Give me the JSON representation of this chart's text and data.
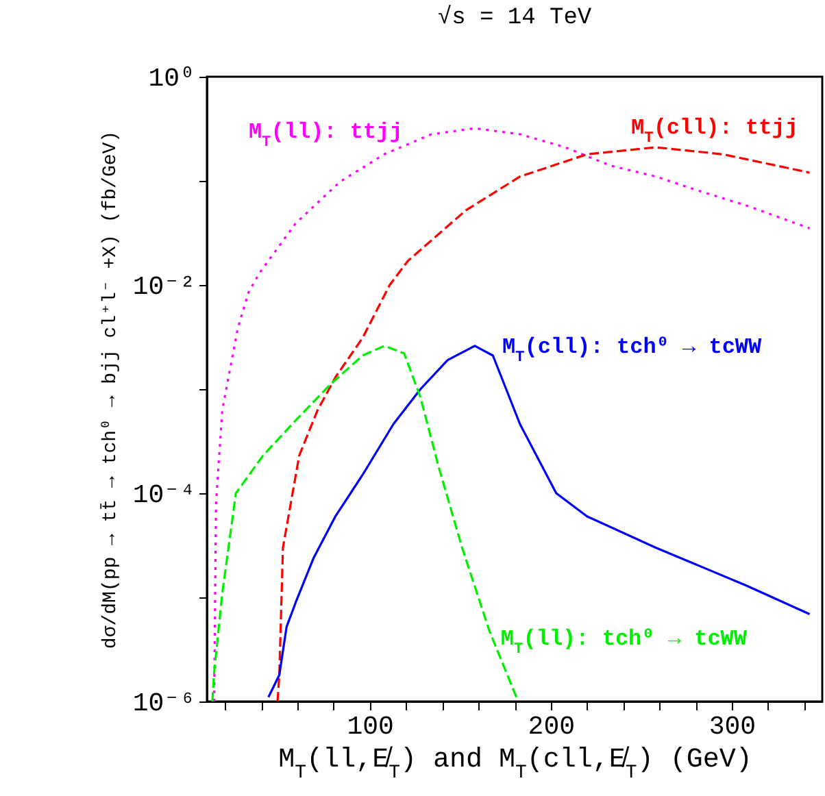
{
  "chart_data": {
    "type": "line",
    "title": "√s = 14 TeV",
    "xlabel": "M$_{T}$(ll,E̸$_{T}$) and M$_{T}$(cll,E̸$_{T}$) (GeV)",
    "ylabel": "dσ/dM(pp → tt̄ → tch⁰ → bjj cl⁺l⁻ +X) (fb/GeV)",
    "log": "y",
    "xlim": [
      10,
      350
    ],
    "ylim": [
      1e-06,
      1
    ],
    "xticks": [
      {
        "value": 20,
        "label": null
      },
      {
        "value": 40,
        "label": null
      },
      {
        "value": 60,
        "label": null
      },
      {
        "value": 80,
        "label": null
      },
      100,
      {
        "value": 120,
        "label": null
      },
      {
        "value": 140,
        "label": null
      },
      {
        "value": 160,
        "label": null
      },
      {
        "value": 180,
        "label": null
      },
      200,
      {
        "value": 220,
        "label": null
      },
      {
        "value": 240,
        "label": null
      },
      {
        "value": 260,
        "label": null
      },
      {
        "value": 280,
        "label": null
      },
      300,
      {
        "value": 320,
        "label": null
      },
      {
        "value": 340,
        "label": null
      }
    ],
    "yticks": [
      {
        "value": 1,
        "label": "10⁰"
      },
      {
        "value": 0.1,
        "label": null
      },
      {
        "value": 0.01,
        "label": "10⁻²"
      },
      {
        "value": 0.001,
        "label": null
      },
      {
        "value": 0.0001,
        "label": "10⁻⁴"
      },
      {
        "value": 1e-05,
        "label": null
      },
      {
        "value": 1e-06,
        "label": "10⁻⁶"
      }
    ],
    "series": [
      {
        "name": "M$_{T}$(ll): ttjj",
        "color": "#ff00ff",
        "line_style": "dotted",
        "x": [
          14,
          15,
          18.5,
          27,
          33,
          39,
          59,
          83.5,
          108,
          134,
          158,
          183,
          208,
          233,
          258,
          283,
          308,
          343
        ],
        "values": [
          1e-06,
          7.9e-05,
          0.00063,
          0.0038,
          0.0085,
          0.013,
          0.039,
          0.098,
          0.18,
          0.28,
          0.32,
          0.28,
          0.21,
          0.14,
          0.11,
          0.079,
          0.058,
          0.035
        ]
      },
      {
        "name": "M$_{T}$(cll): ttjj",
        "color": "#ff0000",
        "line_style": "dashed",
        "x": [
          49,
          50,
          52,
          61,
          71,
          81,
          96,
          111,
          121,
          153,
          183,
          220,
          258,
          295,
          343
        ],
        "values": [
          1e-06,
          1.8e-06,
          3e-05,
          0.00023,
          0.00062,
          0.0013,
          0.0031,
          0.01,
          0.017,
          0.052,
          0.11,
          0.18,
          0.21,
          0.18,
          0.12
        ]
      },
      {
        "name": "M$_{T}$(cll): tch⁰ → tcWW",
        "color": "#0000ff",
        "line_style": "solid",
        "x": [
          44,
          50,
          54,
          59,
          69,
          81,
          96,
          113,
          128,
          143,
          158,
          168,
          183,
          203,
          220,
          258,
          308,
          343
        ],
        "values": [
          1.1e-06,
          1.8e-06,
          5.2e-06,
          8.9e-06,
          2.4e-05,
          6e-05,
          0.00015,
          0.00046,
          0.001,
          0.0019,
          0.0026,
          0.0021,
          0.00046,
          0.0001,
          6e-05,
          3e-05,
          1.3e-05,
          6.9e-06
        ]
      },
      {
        "name": "M$_{T}$(ll): tch⁰ → tcWW",
        "color": "#00ee00",
        "line_style": "dashed",
        "x": [
          13,
          14,
          18.5,
          26,
          41,
          59,
          78,
          96,
          108,
          119,
          128,
          138,
          151,
          166,
          181
        ],
        "values": [
          1e-06,
          1.9e-06,
          1.1e-05,
          0.0001,
          0.00023,
          0.0005,
          0.0011,
          0.0021,
          0.0026,
          0.0022,
          0.00083,
          0.00018,
          3e-05,
          4.8e-06,
          1.1e-06
        ]
      }
    ]
  }
}
